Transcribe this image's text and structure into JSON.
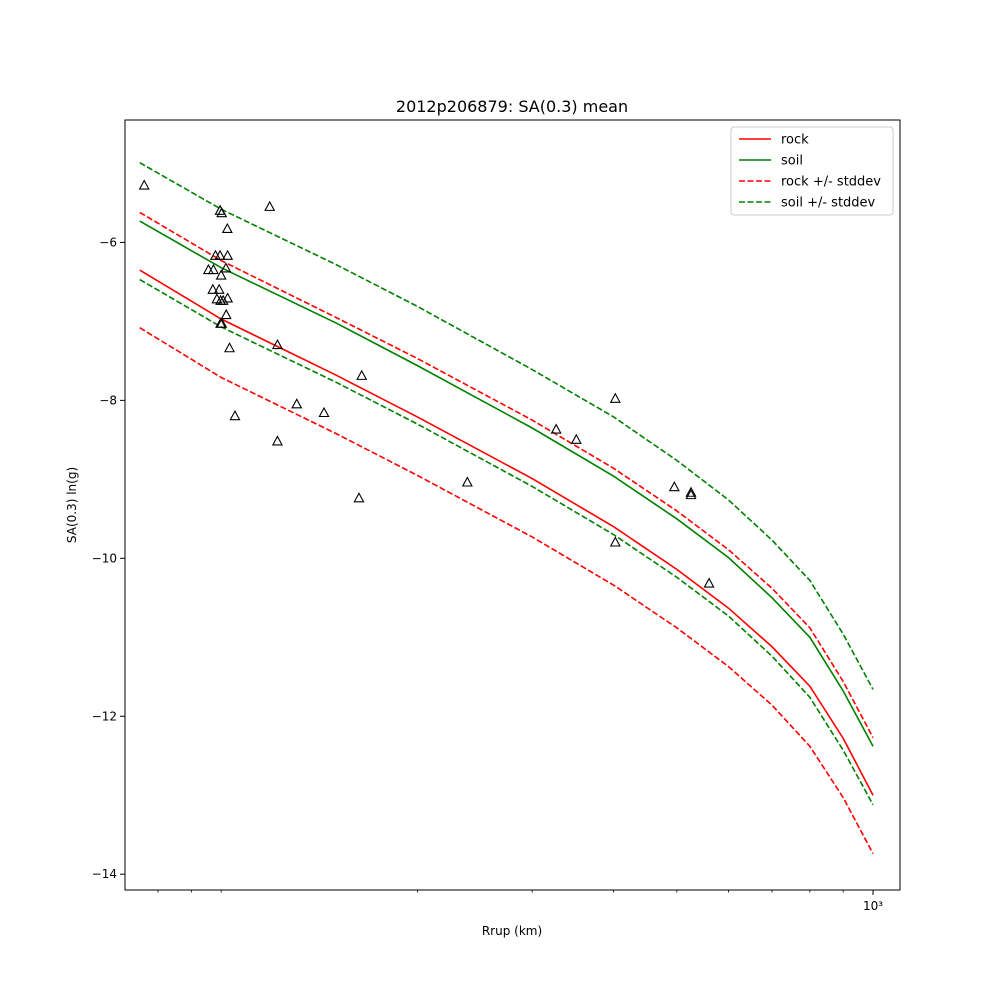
{
  "chart_data": {
    "type": "line",
    "title": "2012p206879: SA(0.3) mean",
    "xlabel": "Rrup (km)",
    "ylabel": "SA(0.3) ln(g)",
    "x_scale": "log",
    "xlim": [
      71.2,
      1100
    ],
    "ylim": [
      -14.2,
      -4.45
    ],
    "x_ticks": [
      {
        "value": 1000,
        "label": "10³"
      }
    ],
    "y_ticks": [
      {
        "value": -6,
        "label": "−6"
      },
      {
        "value": -8,
        "label": "−8"
      },
      {
        "value": -10,
        "label": "−10"
      },
      {
        "value": -12,
        "label": "−12"
      },
      {
        "value": -14,
        "label": "−14"
      }
    ],
    "minor_x_ticks": [
      80,
      90,
      100,
      200,
      300,
      400,
      500,
      600,
      700,
      800,
      900
    ],
    "grid": false,
    "legend_position": "upper right",
    "series": [
      {
        "name": "rock",
        "color": "#ff0000",
        "style": "solid",
        "x": [
          75,
          100,
          150,
          200,
          300,
          400,
          500,
          600,
          700,
          800,
          900,
          1000
        ],
        "y": [
          -6.35,
          -6.97,
          -7.68,
          -8.21,
          -8.99,
          -9.6,
          -10.14,
          -10.63,
          -11.12,
          -11.62,
          -12.28,
          -13.0
        ]
      },
      {
        "name": "soil",
        "color": "#008000",
        "style": "solid",
        "x": [
          75,
          100,
          150,
          200,
          300,
          400,
          500,
          600,
          700,
          800,
          900,
          1000
        ],
        "y": [
          -5.73,
          -6.32,
          -7.02,
          -7.56,
          -8.35,
          -8.96,
          -9.5,
          -9.99,
          -10.5,
          -11.0,
          -11.68,
          -12.38
        ]
      },
      {
        "name": "rock +/- stddev",
        "color": "#ff0000",
        "style": "dashed",
        "x": [
          75,
          100,
          150,
          200,
          300,
          400,
          500,
          600,
          700,
          800,
          900,
          1000
        ],
        "y": [
          -5.62,
          -6.23,
          -6.95,
          -7.47,
          -8.25,
          -8.86,
          -9.4,
          -9.89,
          -10.38,
          -10.88,
          -11.56,
          -12.27
        ]
      },
      {
        "name": "",
        "color": "#ff0000",
        "style": "dashed",
        "x": [
          75,
          100,
          150,
          200,
          300,
          400,
          500,
          600,
          700,
          800,
          900,
          1000
        ],
        "y": [
          -7.08,
          -7.71,
          -8.42,
          -8.95,
          -9.73,
          -10.34,
          -10.88,
          -11.37,
          -11.86,
          -12.38,
          -13.03,
          -13.74
        ]
      },
      {
        "name": "soil +/- stddev",
        "color": "#008000",
        "style": "dashed",
        "x": [
          75,
          100,
          150,
          200,
          300,
          400,
          500,
          600,
          700,
          800,
          900,
          1000
        ],
        "y": [
          -4.99,
          -5.58,
          -6.28,
          -6.81,
          -7.61,
          -8.21,
          -8.76,
          -9.26,
          -9.77,
          -10.28,
          -10.96,
          -11.66
        ]
      },
      {
        "name": "",
        "color": "#008000",
        "style": "dashed",
        "x": [
          75,
          100,
          150,
          200,
          300,
          400,
          500,
          600,
          700,
          800,
          900,
          1000
        ],
        "y": [
          -6.47,
          -7.07,
          -7.77,
          -8.3,
          -9.09,
          -9.7,
          -10.24,
          -10.73,
          -11.24,
          -11.76,
          -12.43,
          -13.12
        ]
      }
    ],
    "observations": {
      "marker": "triangle",
      "x": [
        76.2,
        118.7,
        99.6,
        100.2,
        102.2,
        102.3,
        97.3,
        98.0,
        99.6,
        100.0,
        101.7,
        95.6,
        97.1,
        98.5,
        99.3,
        99.8,
        102.3,
        100.7,
        101.8,
        100.2,
        99.8,
        103.0,
        122.0,
        130.6,
        143.8,
        162.7,
        105.0,
        122.0,
        164.3,
        238.6,
        326.5,
        350.6,
        402.4,
        402.4,
        495.7,
        525.7,
        525.7,
        560.4
      ],
      "y": [
        -5.28,
        -5.55,
        -5.6,
        -5.63,
        -5.83,
        -6.17,
        -6.35,
        -6.17,
        -6.17,
        -6.42,
        -6.33,
        -6.35,
        -6.6,
        -6.72,
        -6.6,
        -6.74,
        -6.71,
        -6.74,
        -6.92,
        -7.03,
        -7.03,
        -7.34,
        -7.3,
        -8.05,
        -8.16,
        -9.24,
        -8.2,
        -8.52,
        -7.69,
        -9.04,
        -8.37,
        -8.5,
        -9.8,
        -7.98,
        -9.1,
        -9.17,
        -9.2,
        -10.32
      ]
    }
  }
}
